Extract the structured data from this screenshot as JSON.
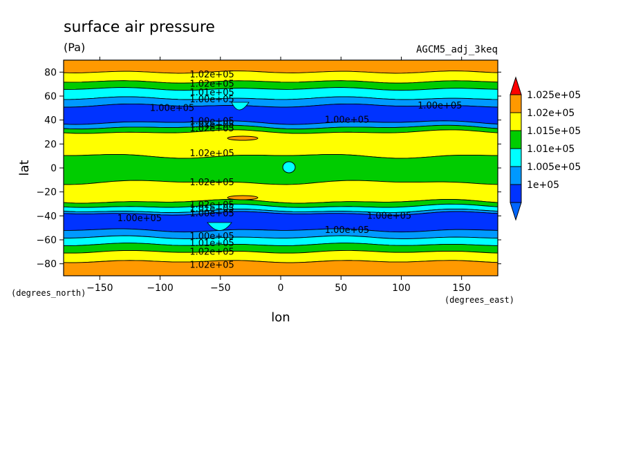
{
  "chart_data": {
    "type": "contour",
    "title": "surface air pressure",
    "units": "(Pa)",
    "run_label": "AGCM5_adj_3keq",
    "xlabel": "lon",
    "ylabel": "lat",
    "x_units": "(degrees_east)",
    "y_units": "(degrees_north)",
    "xlim": [
      -180,
      180
    ],
    "ylim": [
      -90,
      90
    ],
    "x_ticks": [
      -150,
      -100,
      -50,
      0,
      50,
      100,
      150
    ],
    "y_ticks": [
      -80,
      -60,
      -40,
      -20,
      0,
      20,
      40,
      60,
      80
    ],
    "x_tick_labels": [
      "−150",
      "−100",
      "−50",
      "0",
      "50",
      "100",
      "150"
    ],
    "y_tick_labels": [
      "−80",
      "−60",
      "−40",
      "−20",
      "0",
      "20",
      "40",
      "60",
      "80"
    ],
    "colorbar": {
      "levels": [
        "1.025e+05",
        "1.02e+05",
        "1.015e+05",
        "1.01e+05",
        "1.005e+05",
        "1e+05"
      ],
      "colors": [
        "#ff9900",
        "#ffff00",
        "#00cc00",
        "#00ffff",
        "#0099ff",
        "#0033ff"
      ],
      "over_color": "#ff0000",
      "under_color": "#0066ff"
    },
    "zonal_bands": [
      {
        "lat": [
          80,
          90
        ],
        "color": "#ff9900"
      },
      {
        "lat": [
          72,
          80
        ],
        "color": "#ffff00"
      },
      {
        "lat": [
          66,
          72
        ],
        "color": "#00cc00"
      },
      {
        "lat": [
          58,
          66
        ],
        "color": "#00ffff"
      },
      {
        "lat": [
          52,
          58
        ],
        "color": "#0099ff"
      },
      {
        "lat": [
          38,
          52
        ],
        "color": "#0033ff"
      },
      {
        "lat": [
          34,
          38
        ],
        "color": "#0099ff"
      },
      {
        "lat": [
          30,
          34
        ],
        "color": "#00cc00"
      },
      {
        "lat": [
          10,
          30
        ],
        "color": "#ffff00"
      },
      {
        "lat": [
          -12,
          10
        ],
        "color": "#00cc00"
      },
      {
        "lat": [
          -28,
          -12
        ],
        "color": "#ffff00"
      },
      {
        "lat": [
          -32,
          -28
        ],
        "color": "#00cc00"
      },
      {
        "lat": [
          -36,
          -32
        ],
        "color": "#00ffff"
      },
      {
        "lat": [
          -38,
          -36
        ],
        "color": "#0099ff"
      },
      {
        "lat": [
          -52,
          -38
        ],
        "color": "#0033ff"
      },
      {
        "lat": [
          -58,
          -52
        ],
        "color": "#0099ff"
      },
      {
        "lat": [
          -64,
          -58
        ],
        "color": "#00ffff"
      },
      {
        "lat": [
          -70,
          -64
        ],
        "color": "#00cc00"
      },
      {
        "lat": [
          -78,
          -70
        ],
        "color": "#ffff00"
      },
      {
        "lat": [
          -90,
          -78
        ],
        "color": "#ff9900"
      }
    ],
    "contour_labels": [
      {
        "text": "1.02e+05",
        "lon": -57,
        "lat": 78
      },
      {
        "text": "1.02e+05",
        "lon": -57,
        "lat": 70
      },
      {
        "text": "1.01e+05",
        "lon": -57,
        "lat": 63
      },
      {
        "text": "1.00e+05",
        "lon": -57,
        "lat": 57
      },
      {
        "text": "1.00e+05",
        "lon": -90,
        "lat": 50
      },
      {
        "text": "1.00e+05",
        "lon": 55,
        "lat": 40
      },
      {
        "text": "1.00e+05",
        "lon": 132,
        "lat": 52
      },
      {
        "text": "1.00e+05",
        "lon": -57,
        "lat": 39
      },
      {
        "text": "1.01e+05",
        "lon": -57,
        "lat": 36
      },
      {
        "text": "1.02e+05",
        "lon": -57,
        "lat": 33
      },
      {
        "text": "1.02e+05",
        "lon": -57,
        "lat": 12
      },
      {
        "text": "1.02e+05",
        "lon": -57,
        "lat": -12
      },
      {
        "text": "1.02e+05",
        "lon": -57,
        "lat": -31
      },
      {
        "text": "1.01e+05",
        "lon": -57,
        "lat": -34
      },
      {
        "text": "1.00e+05",
        "lon": -57,
        "lat": -38
      },
      {
        "text": "1.00e+05",
        "lon": -117,
        "lat": -42
      },
      {
        "text": "1.00e+05",
        "lon": 90,
        "lat": -40
      },
      {
        "text": "1.00e+05",
        "lon": 55,
        "lat": -52
      },
      {
        "text": "1.00e+05",
        "lon": -57,
        "lat": -57
      },
      {
        "text": "1.01e+05",
        "lon": -57,
        "lat": -63
      },
      {
        "text": "1.02e+05",
        "lon": -57,
        "lat": -70
      },
      {
        "text": "1.02e+05",
        "lon": -57,
        "lat": -81
      }
    ]
  }
}
